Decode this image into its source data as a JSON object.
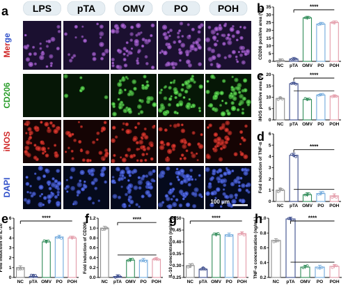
{
  "figure": {
    "colors": {
      "NC": "#8c8c8c",
      "pTA": "#3a4a8a",
      "OMV": "#2e8b57",
      "PO": "#6fa8dc",
      "POH": "#e39aa8",
      "merge_bg": "#1b1030",
      "cd206_bg": "#061706",
      "inos_bg": "#150404",
      "dapi_bg": "#050a1c"
    },
    "panel_a": {
      "letter": "a",
      "groups": [
        "LPS",
        "pTA",
        "OMV",
        "PO",
        "POH"
      ],
      "rows": [
        {
          "label": "Merge",
          "parts": [
            {
              "text": "Mer",
              "color": "#d02a2a"
            },
            {
              "text": "ge",
              "color": "#2f4fc9"
            }
          ]
        },
        {
          "label": "CD206",
          "color": "#2a9d2a"
        },
        {
          "label": "iNOS",
          "color": "#d02a2a"
        },
        {
          "label": "DAPI",
          "color": "#2f4fc9"
        }
      ],
      "scale_bar": "100 μm"
    }
  },
  "chart_data": [
    {
      "panel": "b",
      "type": "bar",
      "categories": [
        "NC",
        "pTA",
        "OMV",
        "PO",
        "POH"
      ],
      "values": [
        0.5,
        1.5,
        28,
        24,
        25
      ],
      "ylabel": "CD206 positive area (%)",
      "ylim": [
        0,
        35
      ],
      "yticks": [
        0,
        5,
        10,
        15,
        20,
        25,
        30,
        35
      ],
      "significance": "****"
    },
    {
      "panel": "c",
      "type": "bar",
      "categories": [
        "NC",
        "pTA",
        "OMV",
        "PO",
        "POH"
      ],
      "values": [
        9.5,
        16,
        9,
        11,
        10.5
      ],
      "ylabel": "iNOS positive area (%)",
      "ylim": [
        0,
        20
      ],
      "yticks": [
        0,
        5,
        10,
        15,
        20
      ],
      "significance": "****"
    },
    {
      "panel": "d",
      "type": "bar",
      "categories": [
        "NC",
        "pTA",
        "OMV",
        "PO",
        "POH"
      ],
      "values": [
        1,
        4.1,
        0.6,
        0.7,
        0.5
      ],
      "ylabel": "Fold induction of TNF-α",
      "ylim": [
        0,
        6
      ],
      "yticks": [
        0,
        1,
        2,
        3,
        4,
        5,
        6
      ],
      "significance": "****"
    },
    {
      "panel": "e",
      "type": "bar",
      "categories": [
        "NC",
        "pTA",
        "OMV",
        "PO",
        "POH"
      ],
      "values": [
        1,
        0.1,
        3.6,
        4.1,
        4.0
      ],
      "ylabel": "Fold induction of IL-10",
      "ylim": [
        0,
        6
      ],
      "yticks": [
        0,
        1,
        2,
        3,
        4,
        5,
        6
      ],
      "significance": "****"
    },
    {
      "panel": "f",
      "type": "bar",
      "categories": [
        "NC",
        "pTA",
        "OMV",
        "PO",
        "POH"
      ],
      "values": [
        1.0,
        0.02,
        0.35,
        0.35,
        0.37
      ],
      "ylabel": "Fold induction of CD206",
      "ylim": [
        0,
        1.2
      ],
      "yticks": [
        0.0,
        0.2,
        0.4,
        0.6,
        0.8,
        1.0,
        1.2
      ],
      "significance": "****"
    },
    {
      "panel": "g",
      "type": "bar",
      "categories": [
        "NC",
        "pTA",
        "OMV",
        "PO",
        "POH"
      ],
      "values": [
        0.3,
        0.285,
        0.43,
        0.43,
        0.435
      ],
      "ylabel": "IL-10 concentration (ng/mL)",
      "ylim": [
        0.25,
        0.5
      ],
      "yticks": [
        0.25,
        0.3,
        0.35,
        0.4,
        0.45,
        0.5
      ],
      "significance": "****"
    },
    {
      "panel": "h",
      "type": "bar",
      "categories": [
        "NC",
        "pTA",
        "OMV",
        "PO",
        "POH"
      ],
      "values": [
        0.7,
        0.99,
        0.34,
        0.34,
        0.35
      ],
      "ylabel": "TNF-α concentration (ng/mL)",
      "ylim": [
        0.2,
        1.0
      ],
      "yticks": [
        0.2,
        0.4,
        0.6,
        0.8,
        1.0
      ],
      "significance": "****"
    }
  ]
}
